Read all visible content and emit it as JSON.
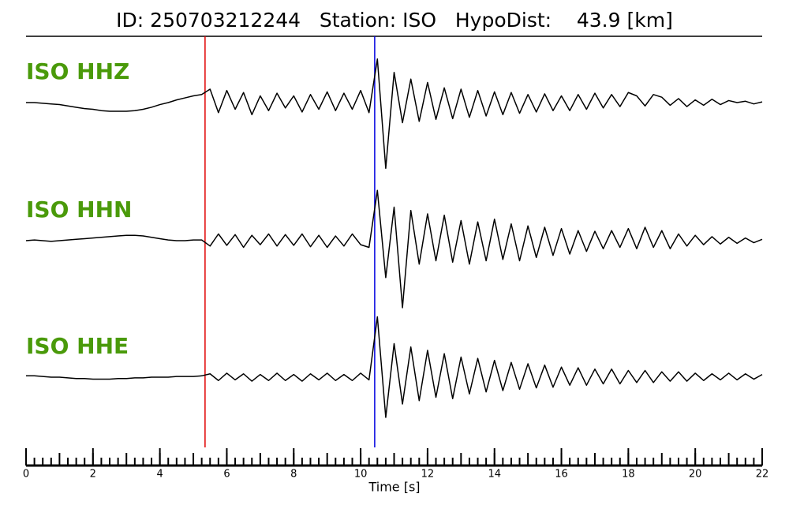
{
  "chart_data": {
    "type": "line",
    "title": "ID: 250703212244   Station: ISO   HypoDist:    43.9 [km]",
    "xlabel": "Time [s]",
    "xlim": [
      0,
      22
    ],
    "xticks": [
      0,
      2,
      4,
      6,
      8,
      10,
      12,
      14,
      16,
      18,
      20,
      22
    ],
    "xminor": 0.25,
    "markers": [
      {
        "x": 5.35,
        "color": "#e00000"
      },
      {
        "x": 10.42,
        "color": "#0000e0"
      }
    ],
    "x": [
      0,
      0.25,
      0.5,
      0.75,
      1,
      1.25,
      1.5,
      1.75,
      2,
      2.25,
      2.5,
      2.75,
      3,
      3.25,
      3.5,
      3.75,
      4,
      4.25,
      4.5,
      4.75,
      5,
      5.25,
      5.5,
      5.75,
      6,
      6.25,
      6.5,
      6.75,
      7,
      7.25,
      7.5,
      7.75,
      8,
      8.25,
      8.5,
      8.75,
      9,
      9.25,
      9.5,
      9.75,
      10,
      10.25,
      10.5,
      10.75,
      11,
      11.25,
      11.5,
      11.75,
      12,
      12.25,
      12.5,
      12.75,
      13,
      13.25,
      13.5,
      13.75,
      14,
      14.25,
      14.5,
      14.75,
      15,
      15.25,
      15.5,
      15.75,
      16,
      16.25,
      16.5,
      16.75,
      17,
      17.25,
      17.5,
      17.75,
      18,
      18.25,
      18.5,
      18.75,
      19,
      19.25,
      19.5,
      19.75,
      20,
      20.25,
      20.5,
      20.75,
      21,
      21.25,
      21.5,
      21.75,
      22
    ],
    "series": [
      {
        "name": "ISO HHZ",
        "color": "#000000",
        "label_color": "#4a9a0a",
        "values": [
          0,
          0,
          -0.01,
          -0.02,
          -0.03,
          -0.05,
          -0.07,
          -0.09,
          -0.1,
          -0.12,
          -0.13,
          -0.13,
          -0.13,
          -0.12,
          -0.1,
          -0.07,
          -0.03,
          0,
          0.04,
          0.07,
          0.1,
          0.12,
          0.2,
          -0.15,
          0.18,
          -0.1,
          0.15,
          -0.18,
          0.1,
          -0.12,
          0.14,
          -0.08,
          0.1,
          -0.14,
          0.12,
          -0.1,
          0.16,
          -0.12,
          0.14,
          -0.1,
          0.18,
          -0.15,
          0.65,
          -0.98,
          0.45,
          -0.3,
          0.35,
          -0.28,
          0.3,
          -0.25,
          0.22,
          -0.24,
          0.2,
          -0.22,
          0.18,
          -0.2,
          0.16,
          -0.18,
          0.15,
          -0.16,
          0.12,
          -0.14,
          0.13,
          -0.12,
          0.1,
          -0.12,
          0.12,
          -0.1,
          0.14,
          -0.08,
          0.12,
          -0.06,
          0.15,
          0.1,
          -0.05,
          0.12,
          0.08,
          -0.04,
          0.06,
          -0.06,
          0.04,
          -0.04,
          0.05,
          -0.03,
          0.03,
          0,
          0.02,
          -0.02,
          0.01
        ]
      },
      {
        "name": "ISO HHN",
        "color": "#000000",
        "label_color": "#4a9a0a",
        "values": [
          0,
          0.01,
          0,
          -0.01,
          0,
          0.01,
          0.02,
          0.03,
          0.04,
          0.05,
          0.06,
          0.07,
          0.08,
          0.08,
          0.07,
          0.05,
          0.03,
          0.01,
          0,
          0,
          0.01,
          0.01,
          -0.08,
          0.1,
          -0.07,
          0.09,
          -0.1,
          0.08,
          -0.06,
          0.1,
          -0.08,
          0.09,
          -0.07,
          0.1,
          -0.09,
          0.08,
          -0.1,
          0.07,
          -0.08,
          0.1,
          -0.06,
          -0.1,
          0.75,
          -0.55,
          0.5,
          -1.0,
          0.45,
          -0.35,
          0.4,
          -0.3,
          0.38,
          -0.32,
          0.3,
          -0.35,
          0.28,
          -0.3,
          0.32,
          -0.28,
          0.25,
          -0.3,
          0.22,
          -0.25,
          0.2,
          -0.22,
          0.18,
          -0.2,
          0.15,
          -0.16,
          0.14,
          -0.12,
          0.15,
          -0.1,
          0.18,
          -0.12,
          0.2,
          -0.1,
          0.15,
          -0.12,
          0.1,
          -0.08,
          0.08,
          -0.06,
          0.06,
          -0.05,
          0.05,
          -0.04,
          0.04,
          -0.03,
          0.02
        ]
      },
      {
        "name": "ISO HHE",
        "color": "#000000",
        "label_color": "#4a9a0a",
        "values": [
          0.02,
          0.02,
          0.01,
          0,
          0,
          -0.01,
          -0.02,
          -0.02,
          -0.03,
          -0.03,
          -0.03,
          -0.02,
          -0.02,
          -0.01,
          -0.01,
          0,
          0,
          0,
          0.01,
          0.01,
          0.01,
          0.02,
          0.05,
          -0.05,
          0.06,
          -0.04,
          0.05,
          -0.06,
          0.04,
          -0.05,
          0.06,
          -0.05,
          0.04,
          -0.06,
          0.05,
          -0.04,
          0.06,
          -0.05,
          0.04,
          -0.05,
          0.06,
          -0.04,
          0.9,
          -0.6,
          0.5,
          -0.4,
          0.45,
          -0.35,
          0.4,
          -0.3,
          0.35,
          -0.32,
          0.3,
          -0.25,
          0.28,
          -0.22,
          0.25,
          -0.2,
          0.22,
          -0.18,
          0.2,
          -0.16,
          0.18,
          -0.15,
          0.15,
          -0.12,
          0.14,
          -0.12,
          0.12,
          -0.1,
          0.12,
          -0.1,
          0.1,
          -0.08,
          0.1,
          -0.08,
          0.08,
          -0.06,
          0.08,
          -0.06,
          0.06,
          -0.05,
          0.05,
          -0.04,
          0.06,
          -0.04,
          0.05,
          -0.03,
          0.04
        ]
      }
    ]
  }
}
